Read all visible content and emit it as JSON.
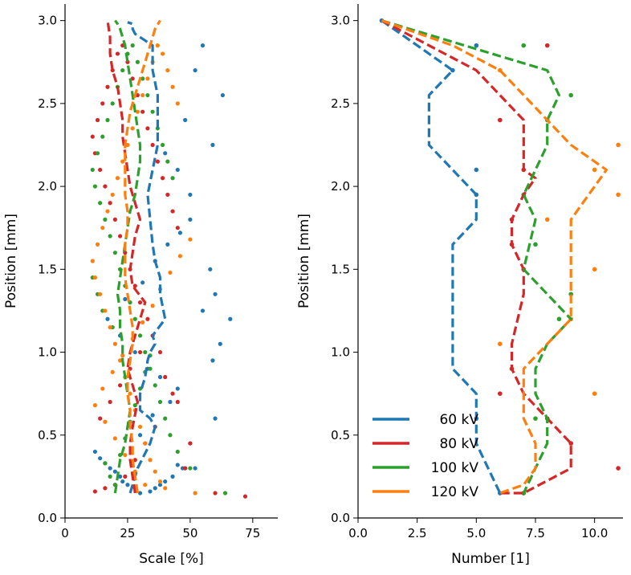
{
  "chart_data": [
    {
      "type": "scatter",
      "xlabel": "Scale [%]",
      "ylabel": "Position [mm]",
      "xlim": [
        0,
        85
      ],
      "ylim": [
        0,
        3.1
      ],
      "xticks": [
        0,
        25,
        50,
        75
      ],
      "yticks": [
        0.0,
        0.5,
        1.0,
        1.5,
        2.0,
        2.5,
        3.0
      ],
      "ytick_labels": [
        "0.0",
        "0.5",
        "1.0",
        "1.5",
        "2.0",
        "2.5",
        "3.0"
      ],
      "lines": [
        {
          "name": "60 kV",
          "color": "#1f77b4",
          "x": [
            26,
            27,
            29,
            34,
            36,
            34,
            30,
            30,
            32,
            33,
            34,
            36,
            35,
            40,
            38,
            38,
            36,
            35,
            34,
            33,
            35,
            37,
            37,
            37,
            35,
            35,
            30,
            28,
            27,
            27,
            27,
            25
          ],
          "y": [
            0.15,
            0.2,
            0.3,
            0.45,
            0.55,
            0.6,
            0.65,
            0.75,
            0.85,
            0.95,
            1.0,
            1.05,
            1.1,
            1.2,
            1.35,
            1.45,
            1.55,
            1.65,
            1.8,
            1.95,
            2.1,
            2.25,
            2.4,
            2.55,
            2.7,
            2.85,
            2.9,
            2.92,
            2.95,
            2.97,
            2.98,
            2.99
          ]
        },
        {
          "name": "80 kV",
          "color": "#d62728",
          "x": [
            28,
            27,
            26,
            26,
            27,
            29,
            27,
            25,
            26,
            28,
            30,
            32,
            27,
            26,
            27,
            28,
            30,
            28,
            26,
            25,
            24,
            23,
            23,
            22,
            21,
            19,
            18,
            18,
            17
          ],
          "y": [
            0.15,
            0.25,
            0.35,
            0.45,
            0.55,
            0.7,
            0.8,
            0.9,
            1.0,
            1.1,
            1.2,
            1.3,
            1.4,
            1.5,
            1.6,
            1.7,
            1.8,
            1.9,
            2.0,
            2.1,
            2.2,
            2.3,
            2.4,
            2.5,
            2.6,
            2.7,
            2.8,
            2.9,
            3.0
          ]
        },
        {
          "name": "100 kV",
          "color": "#2ca02c",
          "x": [
            20,
            21,
            22,
            24,
            25,
            26,
            25,
            24,
            23,
            23,
            22,
            22,
            21,
            22,
            23,
            24,
            25,
            26,
            28,
            29,
            30,
            30,
            29,
            28,
            27,
            26,
            25,
            24,
            23,
            22,
            21,
            20
          ],
          "y": [
            0.15,
            0.25,
            0.35,
            0.45,
            0.55,
            0.65,
            0.75,
            0.85,
            0.95,
            1.05,
            1.15,
            1.25,
            1.35,
            1.45,
            1.55,
            1.65,
            1.75,
            1.85,
            1.95,
            2.05,
            2.15,
            2.25,
            2.35,
            2.45,
            2.55,
            2.65,
            2.75,
            2.85,
            2.9,
            2.95,
            2.98,
            3.0
          ]
        },
        {
          "name": "120 kV",
          "color": "#ff7f0e",
          "x": [
            29,
            28,
            27,
            27,
            26,
            26,
            25,
            25,
            26,
            27,
            27,
            26,
            25,
            24,
            24,
            24,
            25,
            25,
            24,
            24,
            24,
            24,
            25,
            26,
            28,
            30,
            32,
            34,
            36,
            38
          ],
          "y": [
            0.15,
            0.25,
            0.35,
            0.45,
            0.55,
            0.65,
            0.75,
            0.85,
            0.95,
            1.05,
            1.15,
            1.25,
            1.35,
            1.45,
            1.55,
            1.65,
            1.75,
            1.85,
            1.95,
            2.05,
            2.15,
            2.25,
            2.35,
            2.45,
            2.55,
            2.65,
            2.75,
            2.85,
            2.95,
            3.0
          ]
        }
      ],
      "scatter_points": [
        {
          "color": "#1f77b4",
          "x": [
            55,
            52,
            63,
            48,
            59,
            40,
            45,
            50,
            58,
            60,
            55,
            66,
            62,
            59,
            60,
            50,
            52,
            48,
            47,
            45,
            43,
            40,
            38,
            36,
            34,
            30,
            28,
            25,
            23,
            22,
            20,
            18,
            16,
            14,
            12,
            30,
            35,
            42,
            45,
            38,
            33,
            28,
            22,
            17,
            24,
            31,
            36,
            41,
            46,
            50
          ],
          "y": [
            2.85,
            2.7,
            2.55,
            2.4,
            2.25,
            2.2,
            2.1,
            1.95,
            1.5,
            1.35,
            1.25,
            1.2,
            1.05,
            0.95,
            0.6,
            0.45,
            0.3,
            0.3,
            0.3,
            0.32,
            0.25,
            0.22,
            0.2,
            0.18,
            0.16,
            0.15,
            0.18,
            0.2,
            0.22,
            0.25,
            0.28,
            0.3,
            0.33,
            0.36,
            0.4,
            0.5,
            0.62,
            0.7,
            0.78,
            0.85,
            0.9,
            1.0,
            1.1,
            1.2,
            1.32,
            1.42,
            1.55,
            1.65,
            1.72,
            1.8
          ]
        },
        {
          "color": "#d62728",
          "x": [
            72,
            60,
            48,
            50,
            45,
            43,
            40,
            38,
            35,
            33,
            30,
            28,
            26,
            24,
            22,
            20,
            18,
            16,
            14,
            12,
            11,
            13,
            15,
            17,
            19,
            21,
            23,
            25,
            27,
            29,
            31,
            33,
            35,
            37,
            39,
            41,
            43,
            45,
            36,
            32,
            28,
            24,
            20,
            16,
            12,
            14,
            18,
            22,
            26,
            30
          ],
          "y": [
            0.13,
            0.15,
            0.3,
            0.45,
            0.7,
            0.75,
            0.85,
            1.0,
            1.1,
            1.2,
            1.3,
            1.4,
            1.5,
            1.6,
            1.7,
            1.8,
            1.9,
            2.0,
            2.1,
            2.2,
            2.3,
            2.4,
            2.5,
            2.6,
            2.7,
            2.8,
            2.85,
            2.75,
            2.65,
            2.55,
            2.45,
            2.35,
            2.25,
            2.15,
            2.05,
            1.95,
            1.85,
            1.75,
            0.55,
            0.45,
            0.35,
            0.25,
            0.2,
            0.18,
            0.16,
            0.6,
            0.7,
            0.8,
            0.9,
            1.0
          ]
        },
        {
          "color": "#2ca02c",
          "x": [
            64,
            50,
            45,
            42,
            40,
            38,
            36,
            34,
            32,
            30,
            28,
            26,
            24,
            22,
            20,
            18,
            16,
            14,
            12,
            11,
            13,
            15,
            17,
            19,
            21,
            23,
            25,
            27,
            29,
            31,
            33,
            35,
            37,
            39,
            41,
            43,
            20,
            18,
            16,
            22,
            24,
            26,
            28,
            30,
            32,
            34,
            19,
            15,
            13,
            11
          ],
          "y": [
            0.15,
            0.3,
            0.4,
            0.5,
            0.6,
            0.7,
            0.8,
            0.9,
            1.0,
            1.1,
            1.2,
            1.3,
            1.4,
            1.5,
            1.6,
            1.7,
            1.8,
            1.9,
            2.0,
            2.1,
            2.2,
            2.3,
            2.4,
            2.5,
            2.6,
            2.7,
            2.8,
            2.85,
            2.75,
            2.65,
            2.55,
            2.45,
            2.35,
            2.25,
            2.15,
            2.05,
            0.2,
            0.25,
            0.33,
            0.38,
            0.48,
            0.58,
            0.68,
            0.78,
            0.88,
            0.98,
            1.15,
            1.25,
            1.35,
            1.45
          ]
        },
        {
          "color": "#ff7f0e",
          "x": [
            52,
            40,
            38,
            36,
            34,
            32,
            30,
            28,
            26,
            24,
            22,
            20,
            18,
            16,
            14,
            12,
            11,
            13,
            15,
            17,
            19,
            21,
            23,
            25,
            27,
            29,
            31,
            33,
            35,
            37,
            39,
            41,
            43,
            45,
            32,
            28,
            24,
            20,
            16,
            12,
            15,
            19,
            23,
            27,
            31,
            35,
            38,
            42,
            46,
            50
          ],
          "y": [
            0.15,
            0.18,
            0.22,
            0.28,
            0.35,
            0.45,
            0.55,
            0.65,
            0.75,
            0.85,
            0.95,
            1.05,
            1.15,
            1.25,
            1.35,
            1.45,
            1.55,
            1.65,
            1.75,
            1.85,
            1.95,
            2.05,
            2.15,
            2.25,
            2.35,
            2.45,
            2.55,
            2.65,
            2.75,
            2.85,
            2.8,
            2.7,
            2.6,
            2.5,
            0.2,
            0.28,
            0.38,
            0.48,
            0.58,
            0.68,
            0.78,
            0.88,
            0.98,
            1.08,
            1.18,
            1.28,
            1.38,
            1.48,
            1.58,
            1.68
          ]
        }
      ]
    },
    {
      "type": "line",
      "xlabel": "Number [1]",
      "ylabel": "Position [mm]",
      "xlim": [
        0,
        11.2
      ],
      "ylim": [
        0,
        3.1
      ],
      "xticks": [
        0,
        2.5,
        5,
        7.5,
        10
      ],
      "xtick_labels": [
        "0.0",
        "2.5",
        "5.0",
        "7.5",
        "10.0"
      ],
      "yticks": [
        0.0,
        0.5,
        1.0,
        1.5,
        2.0,
        2.5,
        3.0
      ],
      "ytick_labels": [
        "0.0",
        "0.5",
        "1.0",
        "1.5",
        "2.0",
        "2.5",
        "3.0"
      ],
      "legend": {
        "position": "bottom-left",
        "entries": [
          "60 kV",
          "80 kV",
          "100 kV",
          "120 kV"
        ]
      },
      "series": [
        {
          "name": "60 kV",
          "color": "#1f77b4",
          "x": [
            1,
            4,
            3,
            3,
            5,
            5,
            4,
            4,
            4,
            4,
            4,
            4,
            5,
            5,
            5,
            6
          ],
          "y": [
            3.0,
            2.7,
            2.55,
            2.25,
            1.95,
            1.8,
            1.65,
            1.5,
            1.35,
            1.2,
            1.05,
            0.9,
            0.75,
            0.6,
            0.45,
            0.15
          ],
          "points_x": [
            1,
            4,
            5,
            5,
            5,
            5,
            6
          ],
          "points_y": [
            3.0,
            2.7,
            2.85,
            2.1,
            1.95,
            0.6,
            0.15
          ]
        },
        {
          "name": "80 kV",
          "color": "#d62728",
          "x": [
            1,
            5,
            7,
            7,
            7,
            7.5,
            7,
            6.5,
            6.5,
            7,
            7,
            6.5,
            6.5,
            7,
            8,
            9,
            9,
            7,
            6
          ],
          "y": [
            3.0,
            2.7,
            2.4,
            2.25,
            2.1,
            2.05,
            1.95,
            1.8,
            1.65,
            1.5,
            1.35,
            1.05,
            0.9,
            0.75,
            0.6,
            0.45,
            0.3,
            0.15,
            0.15
          ],
          "points_x": [
            8,
            6,
            7,
            6.5,
            6.5,
            7,
            6.5,
            6,
            8,
            9,
            11,
            7
          ],
          "points_y": [
            2.85,
            2.4,
            2.1,
            1.8,
            1.65,
            1.5,
            0.9,
            0.75,
            0.6,
            0.45,
            0.3,
            0.15
          ]
        },
        {
          "name": "100 kV",
          "color": "#2ca02c",
          "x": [
            1,
            8,
            8.5,
            8,
            8,
            7.5,
            7,
            7.5,
            7,
            8,
            9,
            8,
            7.5,
            7.5,
            8,
            8,
            7.5,
            7
          ],
          "y": [
            3.0,
            2.7,
            2.55,
            2.4,
            2.25,
            2.1,
            1.95,
            1.8,
            1.5,
            1.35,
            1.2,
            1.05,
            0.9,
            0.75,
            0.6,
            0.45,
            0.3,
            0.15
          ],
          "points_x": [
            7,
            9,
            8,
            7,
            7.5,
            9,
            8.5,
            7.5,
            7
          ],
          "points_y": [
            2.85,
            2.55,
            2.4,
            1.95,
            1.65,
            1.35,
            1.2,
            0.6,
            0.15
          ]
        },
        {
          "name": "120 kV",
          "color": "#ff7f0e",
          "x": [
            1,
            4,
            6,
            7,
            8,
            9,
            10.5,
            9,
            9,
            9,
            9,
            8,
            7,
            7,
            7.5,
            7.5,
            7,
            6
          ],
          "y": [
            3.0,
            2.85,
            2.7,
            2.55,
            2.4,
            2.25,
            2.1,
            1.8,
            1.65,
            1.35,
            1.2,
            1.05,
            0.9,
            0.6,
            0.45,
            0.3,
            0.2,
            0.15
          ],
          "points_x": [
            6,
            11,
            10,
            11,
            8,
            10,
            9,
            6,
            10
          ],
          "points_y": [
            2.7,
            2.25,
            2.1,
            1.95,
            1.8,
            1.5,
            1.2,
            1.05,
            0.75
          ]
        }
      ]
    }
  ]
}
